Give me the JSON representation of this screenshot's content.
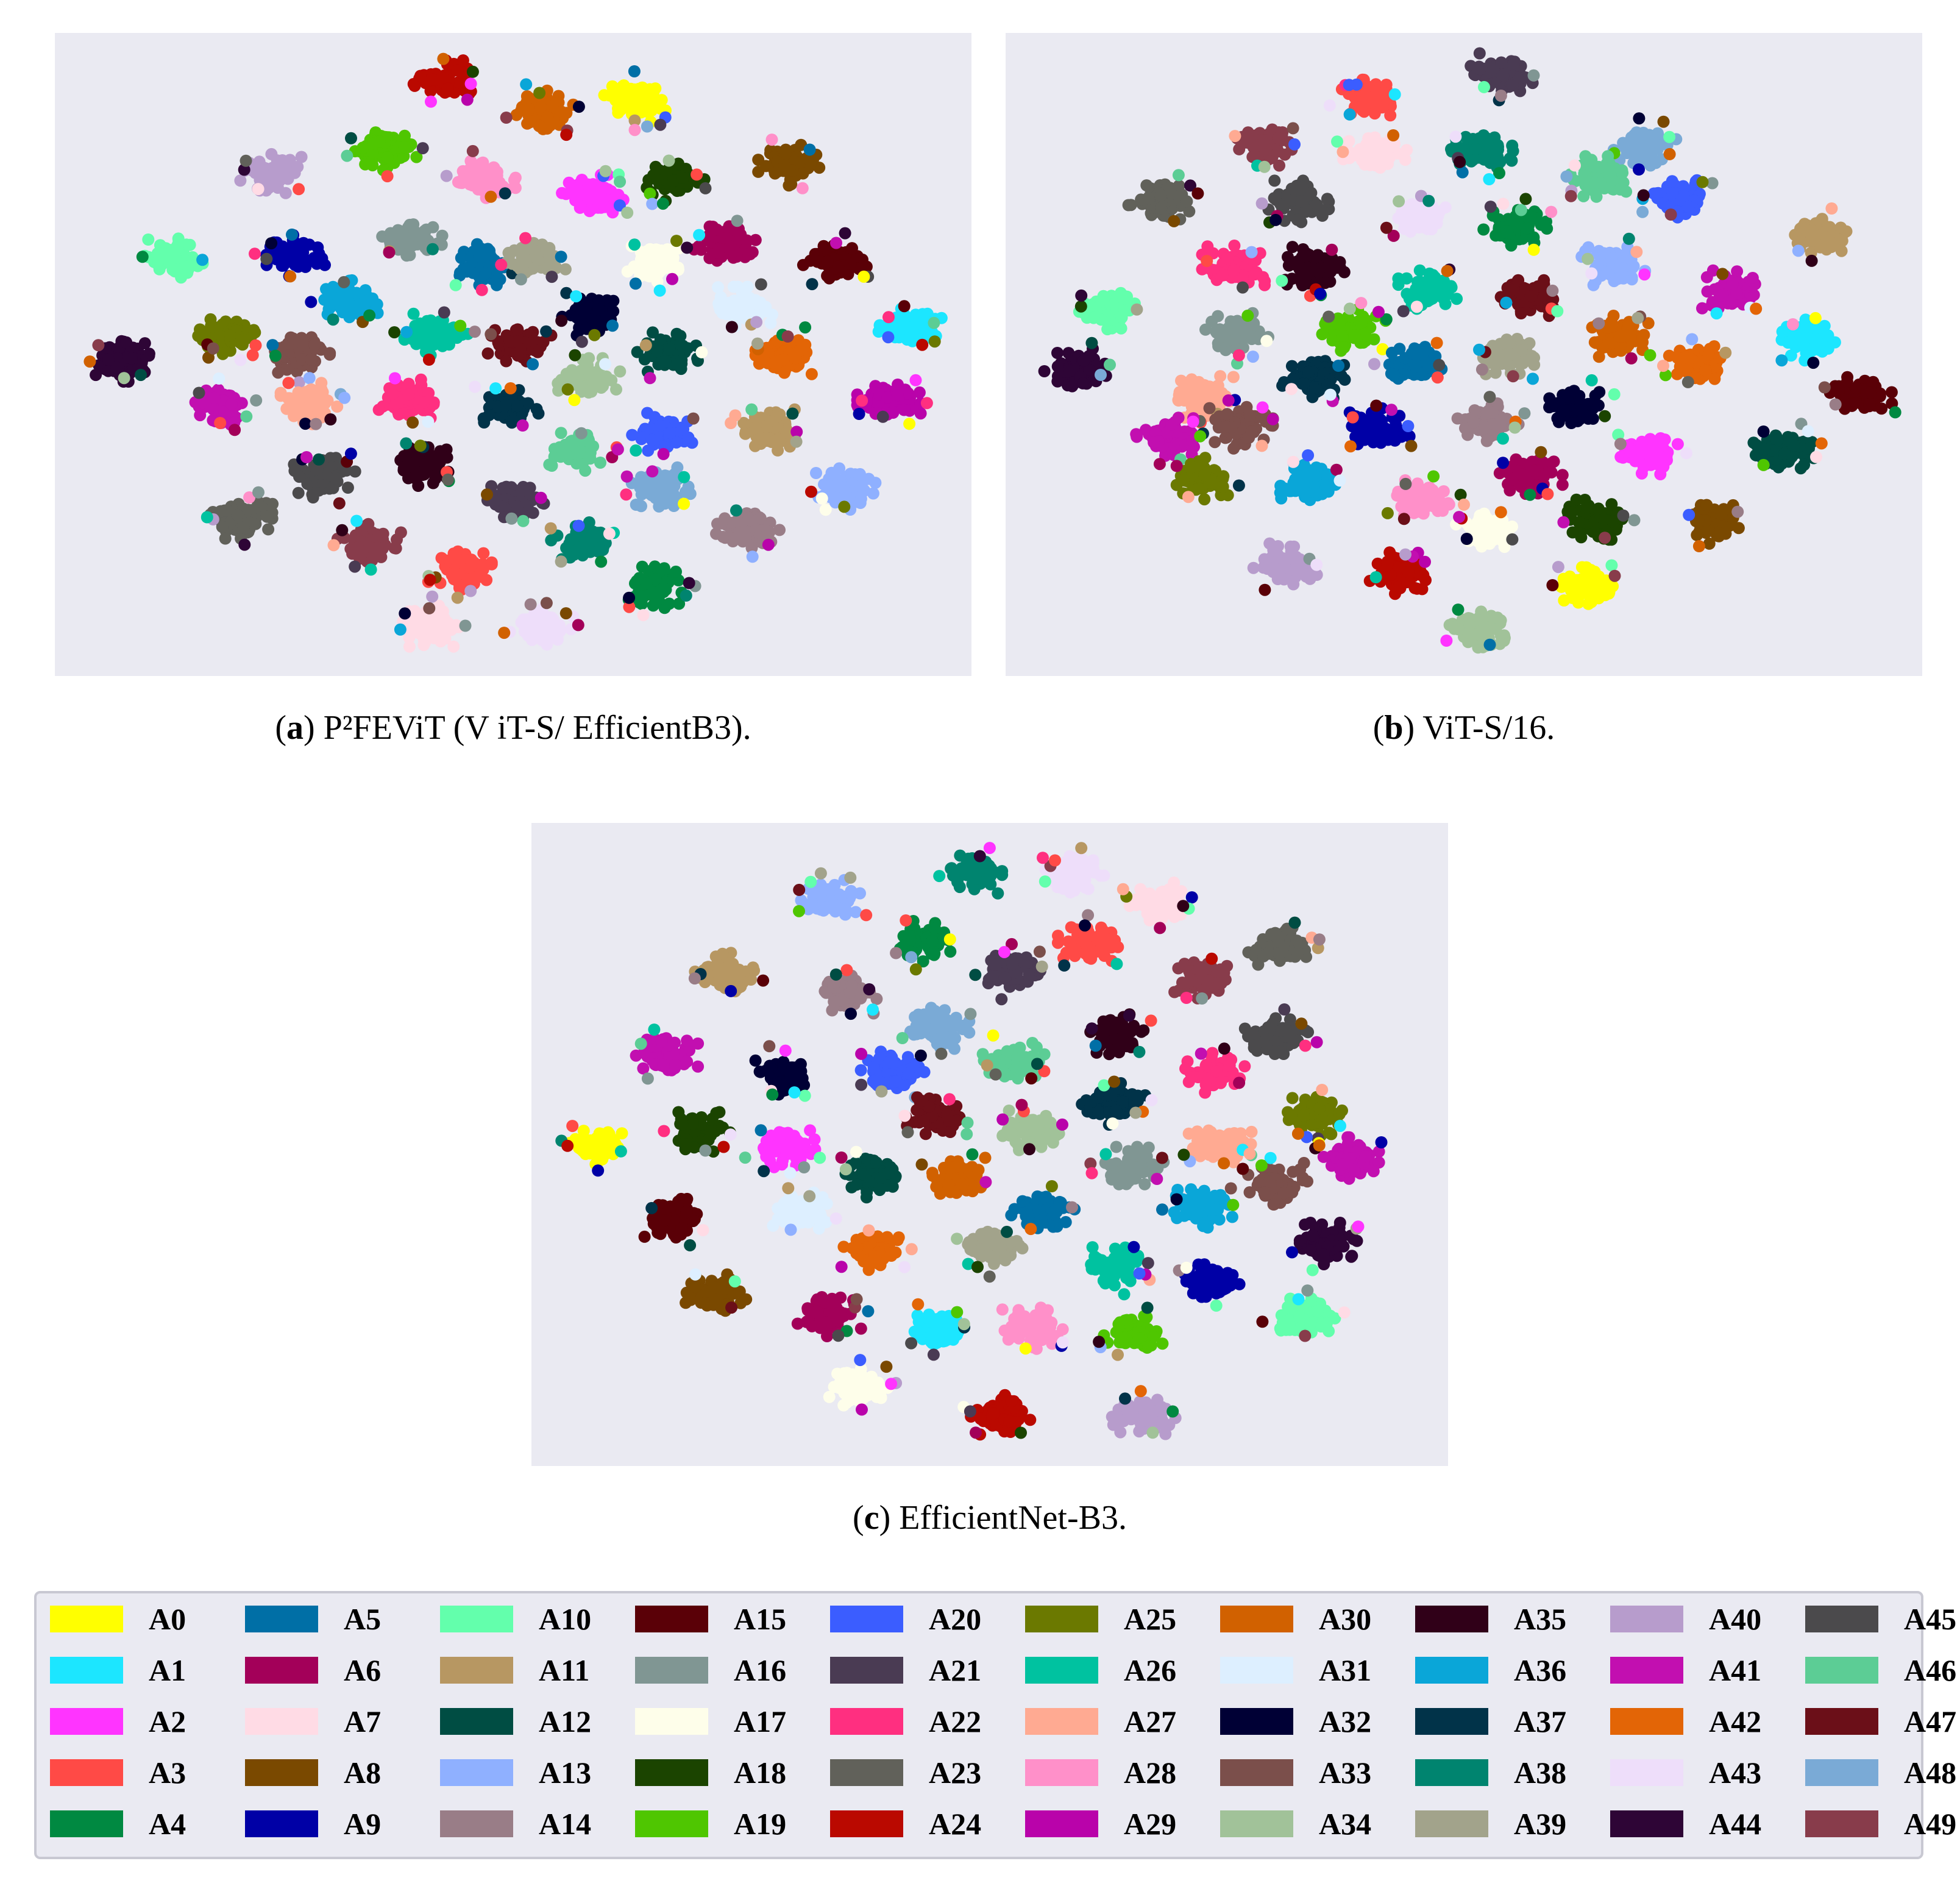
{
  "figure": {
    "panels": [
      {
        "id": "a",
        "caption_letter": "a",
        "caption_text": "P²FEViT (V iT-S/ EfficientB3)."
      },
      {
        "id": "b",
        "caption_letter": "b",
        "caption_text": "ViT-S/16."
      },
      {
        "id": "c",
        "caption_letter": "c",
        "caption_text": "EfficientNet-B3."
      }
    ]
  },
  "chart_data": [
    {
      "type": "scatter",
      "panel": "a",
      "title": "",
      "xlabel": "",
      "ylabel": "",
      "grid": false,
      "xlim": [
        0,
        100
      ],
      "ylim": [
        0,
        100
      ],
      "clusters": [
        {
          "class": "A24",
          "x": 42.6,
          "y": 92.5
        },
        {
          "class": "A30",
          "x": 53.1,
          "y": 87.8
        },
        {
          "class": "A0",
          "x": 63.4,
          "y": 89.4
        },
        {
          "class": "A19",
          "x": 36.0,
          "y": 81.9
        },
        {
          "class": "A40",
          "x": 23.7,
          "y": 78.1
        },
        {
          "class": "A28",
          "x": 46.8,
          "y": 77.3
        },
        {
          "class": "A2",
          "x": 58.7,
          "y": 74.7
        },
        {
          "class": "A18",
          "x": 67.4,
          "y": 77.1
        },
        {
          "class": "A8",
          "x": 80.2,
          "y": 79.5
        },
        {
          "class": "A10",
          "x": 13.1,
          "y": 64.8
        },
        {
          "class": "A9",
          "x": 26.0,
          "y": 65.4
        },
        {
          "class": "A16",
          "x": 38.8,
          "y": 68.0
        },
        {
          "class": "A5",
          "x": 46.9,
          "y": 64.0
        },
        {
          "class": "A39",
          "x": 52.3,
          "y": 64.8
        },
        {
          "class": "A17",
          "x": 65.5,
          "y": 64.4
        },
        {
          "class": "A6",
          "x": 73.2,
          "y": 67.4
        },
        {
          "class": "A15",
          "x": 85.1,
          "y": 64.6
        },
        {
          "class": "A36",
          "x": 32.2,
          "y": 58.3
        },
        {
          "class": "A32",
          "x": 58.8,
          "y": 56.2
        },
        {
          "class": "A31",
          "x": 74.8,
          "y": 57.3
        },
        {
          "class": "A1",
          "x": 93.3,
          "y": 54.3
        },
        {
          "class": "A44",
          "x": 7.6,
          "y": 49.0
        },
        {
          "class": "A25",
          "x": 19.1,
          "y": 53.2
        },
        {
          "class": "A33",
          "x": 26.7,
          "y": 50.2
        },
        {
          "class": "A26",
          "x": 41.6,
          "y": 53.1
        },
        {
          "class": "A47",
          "x": 50.7,
          "y": 51.3
        },
        {
          "class": "A12",
          "x": 67.0,
          "y": 50.2
        },
        {
          "class": "A42",
          "x": 79.9,
          "y": 50.0
        },
        {
          "class": "A41",
          "x": 18.3,
          "y": 42.3
        },
        {
          "class": "A27",
          "x": 28.1,
          "y": 42.4
        },
        {
          "class": "A22",
          "x": 38.8,
          "y": 43.1
        },
        {
          "class": "A37",
          "x": 49.3,
          "y": 41.9
        },
        {
          "class": "A34",
          "x": 58.2,
          "y": 46.2
        },
        {
          "class": "A29",
          "x": 91.0,
          "y": 42.9
        },
        {
          "class": "A20",
          "x": 66.2,
          "y": 37.9
        },
        {
          "class": "A11",
          "x": 77.9,
          "y": 38.3
        },
        {
          "class": "A45",
          "x": 29.4,
          "y": 31.0
        },
        {
          "class": "A35",
          "x": 40.1,
          "y": 32.8
        },
        {
          "class": "A46",
          "x": 56.9,
          "y": 35.1
        },
        {
          "class": "A21",
          "x": 49.9,
          "y": 27.2
        },
        {
          "class": "A48",
          "x": 65.9,
          "y": 29.2
        },
        {
          "class": "A13",
          "x": 86.5,
          "y": 29.1
        },
        {
          "class": "A23",
          "x": 20.4,
          "y": 24.6
        },
        {
          "class": "A49",
          "x": 34.3,
          "y": 20.4
        },
        {
          "class": "A38",
          "x": 57.6,
          "y": 20.7
        },
        {
          "class": "A14",
          "x": 75.6,
          "y": 22.9
        },
        {
          "class": "A3",
          "x": 44.2,
          "y": 16.4
        },
        {
          "class": "A4",
          "x": 65.5,
          "y": 13.8
        },
        {
          "class": "A7",
          "x": 40.6,
          "y": 7.8
        },
        {
          "class": "A43",
          "x": 53.1,
          "y": 7.4
        }
      ]
    },
    {
      "type": "scatter",
      "panel": "b",
      "title": "",
      "xlabel": "",
      "ylabel": "",
      "grid": false,
      "xlim": [
        0,
        100
      ],
      "ylim": [
        0,
        100
      ],
      "clusters": [
        {
          "class": "A21",
          "x": 54.1,
          "y": 93.6
        },
        {
          "class": "A3",
          "x": 39.7,
          "y": 89.6
        },
        {
          "class": "A49",
          "x": 28.2,
          "y": 82.6
        },
        {
          "class": "A7",
          "x": 40.3,
          "y": 81.5
        },
        {
          "class": "A38",
          "x": 51.9,
          "y": 81.5
        },
        {
          "class": "A48",
          "x": 69.8,
          "y": 82.4
        },
        {
          "class": "A46",
          "x": 64.8,
          "y": 77.6
        },
        {
          "class": "A20",
          "x": 73.2,
          "y": 74.5
        },
        {
          "class": "A23",
          "x": 16.7,
          "y": 73.8
        },
        {
          "class": "A45",
          "x": 31.8,
          "y": 73.8
        },
        {
          "class": "A43",
          "x": 45.0,
          "y": 71.4
        },
        {
          "class": "A4",
          "x": 55.6,
          "y": 69.8
        },
        {
          "class": "A11",
          "x": 88.9,
          "y": 68.4
        },
        {
          "class": "A22",
          "x": 24.9,
          "y": 63.7
        },
        {
          "class": "A35",
          "x": 33.5,
          "y": 63.5
        },
        {
          "class": "A26",
          "x": 46.3,
          "y": 60.3
        },
        {
          "class": "A13",
          "x": 66.3,
          "y": 64.0
        },
        {
          "class": "A41",
          "x": 79.0,
          "y": 59.7
        },
        {
          "class": "A47",
          "x": 57.1,
          "y": 59.1
        },
        {
          "class": "A10",
          "x": 11.3,
          "y": 57.1
        },
        {
          "class": "A16",
          "x": 25.2,
          "y": 53.2
        },
        {
          "class": "A19",
          "x": 38.0,
          "y": 53.8
        },
        {
          "class": "A30",
          "x": 66.7,
          "y": 52.8
        },
        {
          "class": "A1",
          "x": 87.4,
          "y": 52.3
        },
        {
          "class": "A44",
          "x": 7.5,
          "y": 47.7
        },
        {
          "class": "A37",
          "x": 33.6,
          "y": 46.3
        },
        {
          "class": "A5",
          "x": 44.1,
          "y": 48.5
        },
        {
          "class": "A39",
          "x": 55.0,
          "y": 49.7
        },
        {
          "class": "A42",
          "x": 75.5,
          "y": 49.0
        },
        {
          "class": "A27",
          "x": 21.4,
          "y": 43.4
        },
        {
          "class": "A32",
          "x": 62.1,
          "y": 42.1
        },
        {
          "class": "A15",
          "x": 93.4,
          "y": 43.7
        },
        {
          "class": "A33",
          "x": 25.7,
          "y": 38.6
        },
        {
          "class": "A41",
          "x": 17.7,
          "y": 37.0
        },
        {
          "class": "A9",
          "x": 40.6,
          "y": 38.4
        },
        {
          "class": "A14",
          "x": 52.5,
          "y": 39.5
        },
        {
          "class": "A12",
          "x": 84.7,
          "y": 35.3
        },
        {
          "class": "A2",
          "x": 69.9,
          "y": 34.6
        },
        {
          "class": "A25",
          "x": 21.5,
          "y": 30.7
        },
        {
          "class": "A36",
          "x": 33.0,
          "y": 30.3
        },
        {
          "class": "A28",
          "x": 45.3,
          "y": 27.2
        },
        {
          "class": "A6",
          "x": 57.3,
          "y": 31.5
        },
        {
          "class": "A18",
          "x": 64.3,
          "y": 24.2
        },
        {
          "class": "A8",
          "x": 77.4,
          "y": 23.8
        },
        {
          "class": "A17",
          "x": 52.6,
          "y": 23.0
        },
        {
          "class": "A40",
          "x": 30.5,
          "y": 17.2
        },
        {
          "class": "A24",
          "x": 43.2,
          "y": 16.0
        },
        {
          "class": "A0",
          "x": 63.2,
          "y": 14.0
        },
        {
          "class": "A34",
          "x": 51.7,
          "y": 7.3
        }
      ]
    },
    {
      "type": "scatter",
      "panel": "c",
      "title": "",
      "xlabel": "",
      "ylabel": "",
      "grid": false,
      "xlim": [
        0,
        100
      ],
      "ylim": [
        0,
        100
      ],
      "clusters": [
        {
          "class": "A38",
          "x": 48.4,
          "y": 92.2
        },
        {
          "class": "A43",
          "x": 59.0,
          "y": 91.9
        },
        {
          "class": "A7",
          "x": 68.3,
          "y": 87.5
        },
        {
          "class": "A13",
          "x": 32.5,
          "y": 87.9
        },
        {
          "class": "A4",
          "x": 42.8,
          "y": 81.7
        },
        {
          "class": "A3",
          "x": 60.9,
          "y": 81.4
        },
        {
          "class": "A23",
          "x": 81.6,
          "y": 80.5
        },
        {
          "class": "A11",
          "x": 21.3,
          "y": 76.9
        },
        {
          "class": "A21",
          "x": 52.2,
          "y": 77.0
        },
        {
          "class": "A14",
          "x": 34.2,
          "y": 73.6
        },
        {
          "class": "A49",
          "x": 73.4,
          "y": 75.7
        },
        {
          "class": "A48",
          "x": 44.3,
          "y": 68.1
        },
        {
          "class": "A45",
          "x": 81.3,
          "y": 66.8
        },
        {
          "class": "A41",
          "x": 14.7,
          "y": 63.8
        },
        {
          "class": "A35",
          "x": 63.9,
          "y": 67.0
        },
        {
          "class": "A32",
          "x": 27.5,
          "y": 61.0
        },
        {
          "class": "A20",
          "x": 39.4,
          "y": 61.2
        },
        {
          "class": "A46",
          "x": 52.5,
          "y": 62.9
        },
        {
          "class": "A22",
          "x": 74.8,
          "y": 61.0
        },
        {
          "class": "A37",
          "x": 63.5,
          "y": 56.3
        },
        {
          "class": "A25",
          "x": 85.6,
          "y": 54.6
        },
        {
          "class": "A0",
          "x": 7.2,
          "y": 50.0
        },
        {
          "class": "A18",
          "x": 18.2,
          "y": 51.8
        },
        {
          "class": "A47",
          "x": 44.2,
          "y": 54.4
        },
        {
          "class": "A34",
          "x": 54.4,
          "y": 52.2
        },
        {
          "class": "A2",
          "x": 27.5,
          "y": 49.7
        },
        {
          "class": "A27",
          "x": 75.1,
          "y": 50.1
        },
        {
          "class": "A41",
          "x": 89.4,
          "y": 47.9
        },
        {
          "class": "A12",
          "x": 37.4,
          "y": 45.0
        },
        {
          "class": "A30",
          "x": 46.6,
          "y": 44.7
        },
        {
          "class": "A16",
          "x": 65.6,
          "y": 46.4
        },
        {
          "class": "A33",
          "x": 81.4,
          "y": 43.9
        },
        {
          "class": "A15",
          "x": 15.8,
          "y": 38.3
        },
        {
          "class": "A31",
          "x": 29.3,
          "y": 39.4
        },
        {
          "class": "A5",
          "x": 55.8,
          "y": 39.6
        },
        {
          "class": "A36",
          "x": 73.0,
          "y": 40.3
        },
        {
          "class": "A44",
          "x": 86.6,
          "y": 34.6
        },
        {
          "class": "A42",
          "x": 37.1,
          "y": 33.4
        },
        {
          "class": "A39",
          "x": 50.1,
          "y": 33.8
        },
        {
          "class": "A26",
          "x": 63.6,
          "y": 31.2
        },
        {
          "class": "A9",
          "x": 73.8,
          "y": 28.7
        },
        {
          "class": "A8",
          "x": 20.0,
          "y": 26.7
        },
        {
          "class": "A6",
          "x": 32.5,
          "y": 23.4
        },
        {
          "class": "A10",
          "x": 84.2,
          "y": 23.3
        },
        {
          "class": "A1",
          "x": 44.4,
          "y": 21.2
        },
        {
          "class": "A28",
          "x": 54.5,
          "y": 21.4
        },
        {
          "class": "A19",
          "x": 65.8,
          "y": 20.7
        },
        {
          "class": "A17",
          "x": 35.4,
          "y": 12.3
        },
        {
          "class": "A24",
          "x": 51.4,
          "y": 7.8
        },
        {
          "class": "A40",
          "x": 66.8,
          "y": 7.7
        }
      ]
    }
  ],
  "legend": {
    "entries": [
      {
        "label": "A0",
        "color": "#ffff00"
      },
      {
        "label": "A1",
        "color": "#1ce6ff"
      },
      {
        "label": "A2",
        "color": "#ff34ff"
      },
      {
        "label": "A3",
        "color": "#ff4a46"
      },
      {
        "label": "A4",
        "color": "#008941"
      },
      {
        "label": "A5",
        "color": "#006fa6"
      },
      {
        "label": "A6",
        "color": "#a30059"
      },
      {
        "label": "A7",
        "color": "#ffdbe5"
      },
      {
        "label": "A8",
        "color": "#7a4900"
      },
      {
        "label": "A9",
        "color": "#0000a6"
      },
      {
        "label": "A10",
        "color": "#63ffac"
      },
      {
        "label": "A11",
        "color": "#b79762"
      },
      {
        "label": "A12",
        "color": "#004d43"
      },
      {
        "label": "A13",
        "color": "#8fb0ff"
      },
      {
        "label": "A14",
        "color": "#997d87"
      },
      {
        "label": "A15",
        "color": "#5a0007"
      },
      {
        "label": "A16",
        "color": "#809693"
      },
      {
        "label": "A17",
        "color": "#fefeea"
      },
      {
        "label": "A18",
        "color": "#1b4400"
      },
      {
        "label": "A19",
        "color": "#4fc601"
      },
      {
        "label": "A20",
        "color": "#3b5dff"
      },
      {
        "label": "A21",
        "color": "#4a3b53"
      },
      {
        "label": "A22",
        "color": "#ff2f80"
      },
      {
        "label": "A23",
        "color": "#61615a"
      },
      {
        "label": "A24",
        "color": "#ba0900"
      },
      {
        "label": "A25",
        "color": "#6b7900"
      },
      {
        "label": "A26",
        "color": "#00c2a0"
      },
      {
        "label": "A27",
        "color": "#ffaa92"
      },
      {
        "label": "A28",
        "color": "#ff90c9"
      },
      {
        "label": "A29",
        "color": "#b903aa"
      },
      {
        "label": "A30",
        "color": "#d16100"
      },
      {
        "label": "A31",
        "color": "#ddefff"
      },
      {
        "label": "A32",
        "color": "#000035"
      },
      {
        "label": "A33",
        "color": "#7b4f4b"
      },
      {
        "label": "A34",
        "color": "#a1c299"
      },
      {
        "label": "A35",
        "color": "#300018"
      },
      {
        "label": "A36",
        "color": "#0aa6d8"
      },
      {
        "label": "A37",
        "color": "#013349"
      },
      {
        "label": "A38",
        "color": "#00846f"
      },
      {
        "label": "A39",
        "color": "#a2a38b"
      },
      {
        "label": "A40",
        "color": "#b79ccc"
      },
      {
        "label": "A41",
        "color": "#c20fb0"
      },
      {
        "label": "A42",
        "color": "#e36506"
      },
      {
        "label": "A43",
        "color": "#eedefa"
      },
      {
        "label": "A44",
        "color": "#2e0536"
      },
      {
        "label": "A45",
        "color": "#4b4a4c"
      },
      {
        "label": "A46",
        "color": "#5ccd95"
      },
      {
        "label": "A47",
        "color": "#6b0f18"
      },
      {
        "label": "A48",
        "color": "#7aaad6"
      },
      {
        "label": "A49",
        "color": "#883c4b"
      }
    ]
  },
  "colors": {
    "panel_background": "#eaeaf2"
  }
}
